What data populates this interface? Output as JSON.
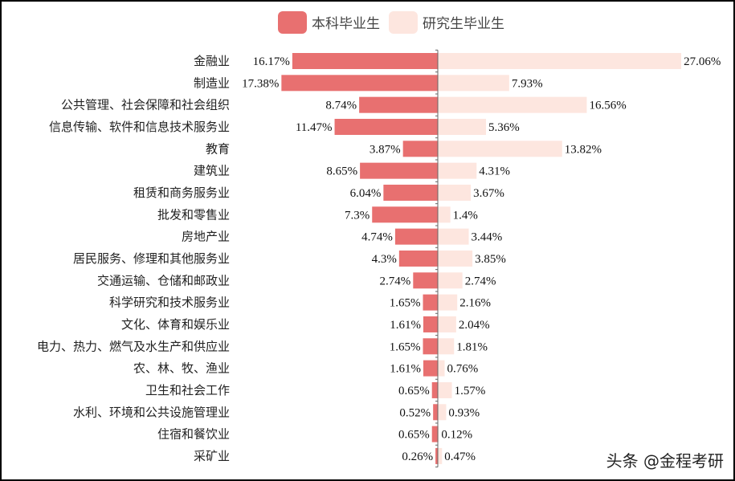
{
  "chart_data": {
    "type": "bar",
    "orientation": "horizontal-butterfly",
    "categories": [
      "金融业",
      "制造业",
      "公共管理、社会保障和社会组织",
      "信息传输、软件和信息技术服务业",
      "教育",
      "建筑业",
      "租赁和商务服务业",
      "批发和零售业",
      "房地产业",
      "居民服务、修理和其他服务业",
      "交通运输、仓储和邮政业",
      "科学研究和技术服务业",
      "文化、体育和娱乐业",
      "电力、热力、燃气及水生产和供应业",
      "农、林、牧、渔业",
      "卫生和社会工作",
      "水利、环境和公共设施管理业",
      "住宿和餐饮业",
      "采矿业"
    ],
    "series": [
      {
        "name": "本科毕业生",
        "color": "#e87070",
        "side": "left",
        "values": [
          16.17,
          17.38,
          8.74,
          11.47,
          3.87,
          8.65,
          6.04,
          7.3,
          4.74,
          4.3,
          2.74,
          1.65,
          1.61,
          1.65,
          1.61,
          0.65,
          0.52,
          0.65,
          0.26
        ]
      },
      {
        "name": "研究生毕业生",
        "color": "#fde6df",
        "side": "right",
        "values": [
          27.06,
          7.93,
          16.56,
          5.36,
          13.82,
          4.31,
          3.67,
          1.4,
          3.44,
          3.85,
          2.74,
          2.16,
          2.04,
          1.81,
          0.76,
          1.57,
          0.93,
          0.12,
          0.47
        ]
      }
    ],
    "value_format": "percent",
    "legend": "top-center",
    "grid": false
  },
  "watermark": "头条 @金程考研"
}
